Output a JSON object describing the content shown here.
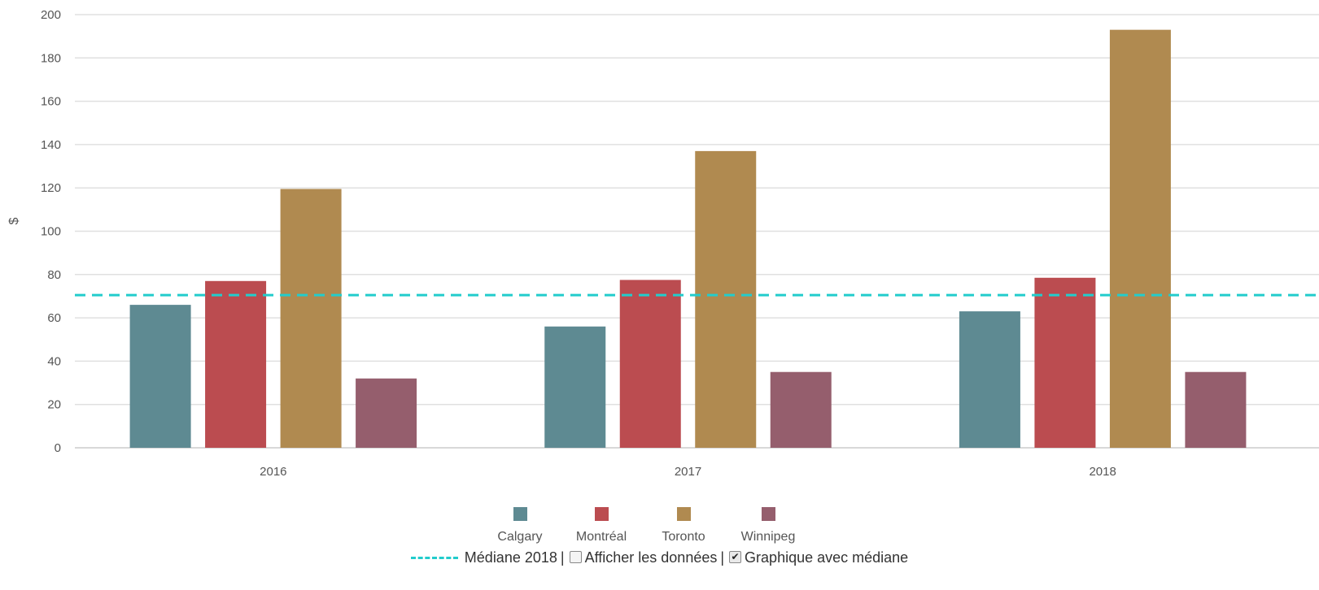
{
  "chart_data": {
    "type": "bar",
    "categories": [
      "2016",
      "2017",
      "2018"
    ],
    "series": [
      {
        "name": "Calgary",
        "color": "#5e8a92",
        "values": [
          66,
          56,
          63
        ]
      },
      {
        "name": "Montréal",
        "color": "#bb4c50",
        "values": [
          77,
          77.5,
          78.5
        ]
      },
      {
        "name": "Toronto",
        "color": "#b08a50",
        "values": [
          119.5,
          137,
          193
        ]
      },
      {
        "name": "Winnipeg",
        "color": "#955e6d",
        "values": [
          32,
          35,
          35
        ]
      }
    ],
    "ylabel": "$",
    "xlabel": "",
    "title": "",
    "ylim": [
      0,
      200
    ],
    "yticks": [
      0,
      20,
      40,
      60,
      80,
      100,
      120,
      140,
      160,
      180,
      200
    ],
    "grid": true,
    "legend_position": "bottom",
    "median": {
      "label": "Médiane 2018",
      "value": 70.5,
      "color": "#22cccc",
      "style": "dashed"
    }
  },
  "controls": {
    "median_label": "Médiane 2018",
    "separator": "|",
    "show_data_label": "Afficher les données",
    "show_data_checked": false,
    "median_chart_label": "Graphique avec médiane",
    "median_chart_checked": true
  }
}
